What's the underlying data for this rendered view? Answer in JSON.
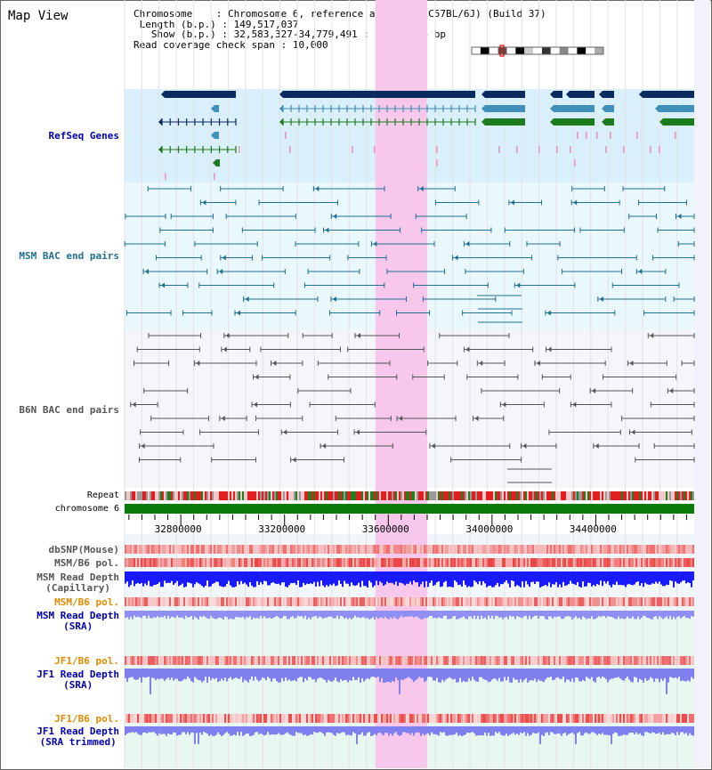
{
  "title": "Map View",
  "info": {
    "chromosome_label": "Chromosome",
    "chromosome_value": "Chromosome 6, reference assembly (C57BL/6J) (Build 37)",
    "length_label": "Length (b.p.)",
    "length_value": "149,517,037",
    "show_label": "Show (b.p.)",
    "show_value": "32,583,327-34,779,491 : 2,196,165 bp",
    "coverage_label": "Read coverage check span",
    "coverage_value": "10,000"
  },
  "tracks": {
    "refseq": "RefSeq Genes",
    "msm_bac": "MSM BAC end pairs",
    "b6n_bac": "B6N BAC end pairs",
    "repeat": "Repeat",
    "chromosome": "chromosome 6",
    "dbsnp": "dbSNP(Mouse)",
    "msm_b6_pol_1": "MSM/B6 pol.",
    "msm_depth_cap_1": "MSM Read Depth",
    "msm_depth_cap_2": "(Capillary)",
    "msm_b6_pol_2": "MSM/B6 pol.",
    "msm_depth_sra_1": "MSM Read Depth",
    "msm_depth_sra_2": "(SRA)",
    "jf1_b6_pol_1": "JF1/B6 pol.",
    "jf1_depth_sra_1": "JF1 Read Depth",
    "jf1_depth_sra_2": "(SRA)",
    "jf1_b6_pol_2": "JF1/B6 pol.",
    "jf1_depth_trim_1": "JF1 Read Depth",
    "jf1_depth_trim_2": "(SRA trimmed)"
  },
  "axis": {
    "ticks": [
      "32800000",
      "33200000",
      "33600000",
      "34000000",
      "34400000"
    ],
    "tick_values": [
      32800000,
      33200000,
      33600000,
      34000000,
      34400000
    ],
    "range_start": 32583327,
    "range_end": 34779491
  },
  "highlight": {
    "start": 33550000,
    "end": 33750000
  },
  "colors": {
    "refseq_bg": "#d9effa",
    "msm_bg": "#e8f8fc",
    "b6n_bg": "#f4f6fa",
    "lower_bg": "#e8f8f0",
    "highlight": "#f7c8ec",
    "gene_dark": "#0b2a5e",
    "gene_mid": "#3f8fb8",
    "gene_green": "#1e7a1e",
    "msm_pair": "#1f6f8f",
    "b6n_pair": "#555555",
    "chrom_bar": "#0a7a0a",
    "depth_blue": "#1a1aff",
    "depth_light": "#7f7ff0",
    "label_blue": "#0000aa",
    "label_orange": "#e08a00",
    "label_gray": "#555555"
  }
}
